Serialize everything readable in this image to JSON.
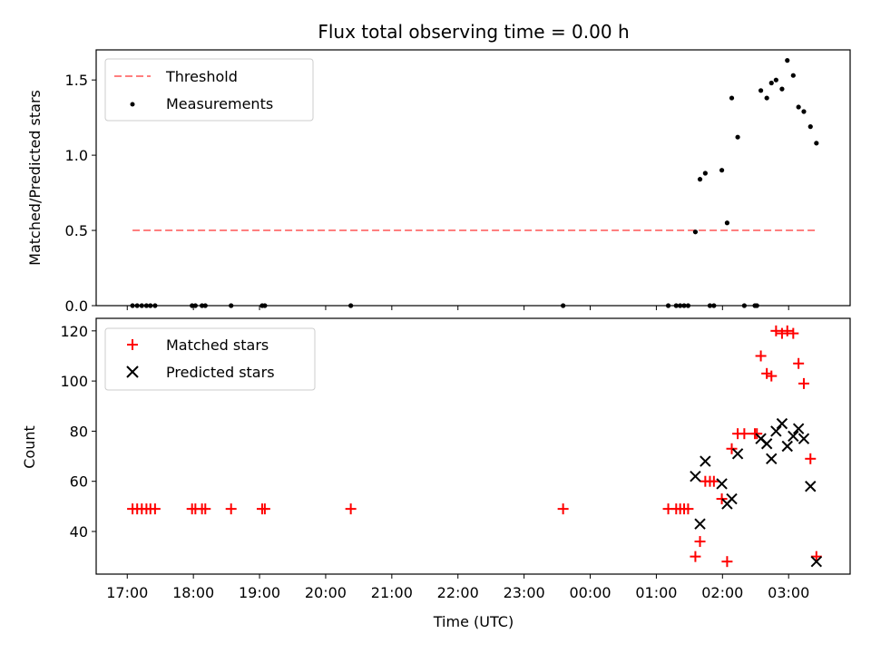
{
  "chart_data": [
    {
      "type": "scatter",
      "title": "Flux total observing time = 0.00 h",
      "xlabel": "",
      "ylabel": "Matched/Predicted stars",
      "xlim": [
        16.53,
        27.93
      ],
      "ylim": [
        0,
        1.7
      ],
      "yticks": [
        {
          "value": 0.0,
          "label": "0.0"
        },
        {
          "value": 0.5,
          "label": "0.5"
        },
        {
          "value": 1.0,
          "label": "1.0"
        },
        {
          "value": 1.5,
          "label": "1.5"
        }
      ],
      "legend_position": "top-left",
      "threshold": {
        "name": "Threshold",
        "color": "#ff7f7f",
        "y": 0.5,
        "x": [
          17.08,
          27.42
        ]
      },
      "series": [
        {
          "name": "Measurements",
          "color": "#000000",
          "x": [
            17.08,
            17.15,
            17.22,
            17.29,
            17.35,
            17.42,
            17.98,
            18.03,
            18.13,
            18.18,
            18.57,
            19.04,
            19.08,
            20.38,
            23.59,
            25.18,
            25.3,
            25.36,
            25.42,
            25.48,
            25.59,
            25.66,
            25.74,
            25.81,
            25.87,
            25.99,
            26.07,
            26.14,
            26.23,
            26.33,
            26.49,
            26.52,
            26.58,
            26.67,
            26.74,
            26.81,
            26.9,
            26.98,
            27.07,
            27.15,
            27.23,
            27.33,
            27.42
          ],
          "y": [
            0,
            0,
            0,
            0,
            0,
            0,
            0,
            0,
            0,
            0,
            0,
            0,
            0,
            0,
            0,
            0,
            0,
            0,
            0,
            0,
            0.49,
            0.84,
            0.88,
            0,
            0,
            0.9,
            0.55,
            1.38,
            1.12,
            0,
            0,
            0,
            1.43,
            1.38,
            1.48,
            1.5,
            1.44,
            1.63,
            1.53,
            1.32,
            1.29,
            1.19,
            1.08
          ]
        }
      ]
    },
    {
      "type": "scatter",
      "title": "",
      "xlabel": "Time (UTC)",
      "ylabel": "Count",
      "xlim": [
        16.53,
        27.93
      ],
      "ylim": [
        23,
        125
      ],
      "yticks": [
        {
          "value": 40,
          "label": "40"
        },
        {
          "value": 60,
          "label": "60"
        },
        {
          "value": 80,
          "label": "80"
        },
        {
          "value": 100,
          "label": "100"
        },
        {
          "value": 120,
          "label": "120"
        }
      ],
      "xticks": [
        {
          "value": 17,
          "label": "17:00"
        },
        {
          "value": 18,
          "label": "18:00"
        },
        {
          "value": 19,
          "label": "19:00"
        },
        {
          "value": 20,
          "label": "20:00"
        },
        {
          "value": 21,
          "label": "21:00"
        },
        {
          "value": 22,
          "label": "22:00"
        },
        {
          "value": 23,
          "label": "23:00"
        },
        {
          "value": 24,
          "label": "00:00"
        },
        {
          "value": 25,
          "label": "01:00"
        },
        {
          "value": 26,
          "label": "02:00"
        },
        {
          "value": 27,
          "label": "03:00"
        }
      ],
      "legend_position": "top-left",
      "series": [
        {
          "name": "Matched stars",
          "marker": "plus",
          "color": "#ff0000",
          "x": [
            17.08,
            17.15,
            17.22,
            17.29,
            17.35,
            17.42,
            17.98,
            18.03,
            18.13,
            18.18,
            18.57,
            19.04,
            19.08,
            20.38,
            23.59,
            25.18,
            25.3,
            25.36,
            25.42,
            25.48,
            25.59,
            25.66,
            25.74,
            25.81,
            25.87,
            25.99,
            26.07,
            26.14,
            26.23,
            26.33,
            26.49,
            26.52,
            26.58,
            26.67,
            26.74,
            26.81,
            26.9,
            26.98,
            27.07,
            27.15,
            27.23,
            27.33,
            27.42
          ],
          "y": [
            49,
            49,
            49,
            49,
            49,
            49,
            49,
            49,
            49,
            49,
            49,
            49,
            49,
            49,
            49,
            49,
            49,
            49,
            49,
            49,
            30,
            36,
            60,
            60,
            60,
            53,
            28,
            73,
            79,
            79,
            79,
            79,
            110,
            103,
            102,
            120,
            119,
            120,
            119,
            107,
            99,
            69,
            30
          ]
        },
        {
          "name": "Predicted stars",
          "marker": "x",
          "color": "#000000",
          "x": [
            25.59,
            25.66,
            25.74,
            25.99,
            26.07,
            26.14,
            26.23,
            26.58,
            26.67,
            26.74,
            26.81,
            26.9,
            26.98,
            27.07,
            27.15,
            27.23,
            27.33,
            27.42
          ],
          "y": [
            62,
            43,
            68,
            59,
            51,
            53,
            71,
            77,
            75,
            69,
            80,
            83,
            74,
            78,
            81,
            77,
            58,
            28
          ]
        }
      ]
    }
  ]
}
